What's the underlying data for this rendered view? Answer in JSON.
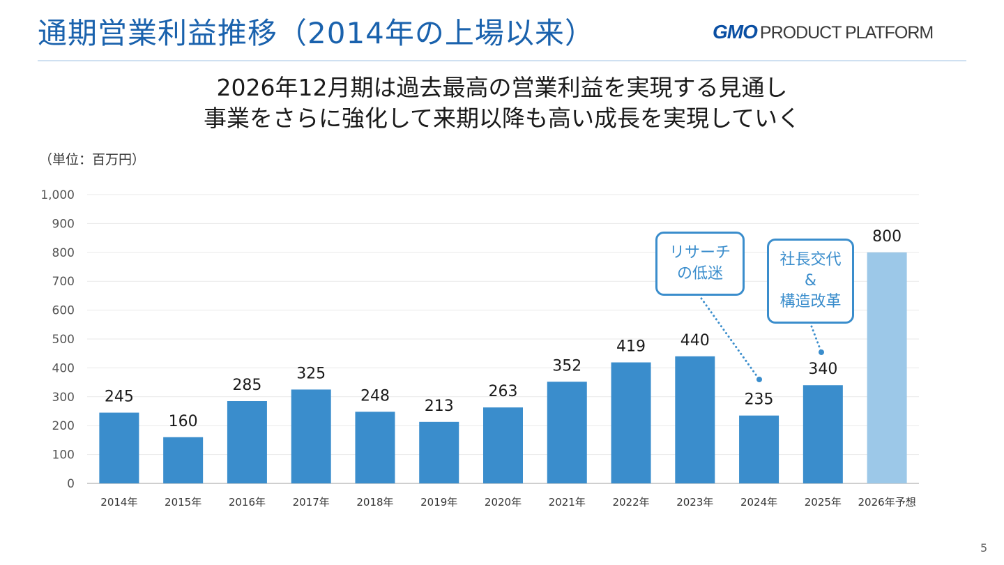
{
  "header": {
    "title": "通期営業利益推移（2014年の上場以来）",
    "brand_gmo": "GMO",
    "brand_rest": "PRODUCT PLATFORM"
  },
  "headline": {
    "line1": "2026年12月期は過去最高の営業利益を実現する見通し",
    "line2": "事業をさらに強化して来期以降も高い成長を実現していく"
  },
  "unit_note": "（単位：百万円）",
  "callouts": {
    "research": {
      "line1": "リサーチ",
      "line2": "の低迷"
    },
    "restructure": {
      "line1": "社長交代",
      "line2": "&",
      "line3": "構造改革"
    }
  },
  "page_number": "5",
  "colors": {
    "title": "#1a62ad",
    "bar_actual": "#3a8dcc",
    "bar_forecast": "#9cc8e8",
    "callout": "#3a8dcc"
  },
  "chart_data": {
    "type": "bar",
    "categories": [
      "2014年",
      "2015年",
      "2016年",
      "2017年",
      "2018年",
      "2019年",
      "2020年",
      "2021年",
      "2022年",
      "2023年",
      "2024年",
      "2025年",
      "2026年予想"
    ],
    "values": [
      245,
      160,
      285,
      325,
      248,
      213,
      263,
      352,
      419,
      440,
      235,
      340,
      800
    ],
    "data_labels": [
      "245",
      "160",
      "285",
      "325",
      "248",
      "213",
      "263",
      "352",
      "419",
      "440",
      "235",
      "340",
      "800"
    ],
    "forecast_index": 12,
    "ylim": [
      0,
      1000
    ],
    "yticks": [
      0,
      100,
      200,
      300,
      400,
      500,
      600,
      700,
      800,
      900,
      1000
    ],
    "ytick_labels": [
      "0",
      "100",
      "200",
      "300",
      "400",
      "500",
      "600",
      "700",
      "800",
      "900",
      "1,000"
    ],
    "grid": true,
    "legend": "none"
  }
}
